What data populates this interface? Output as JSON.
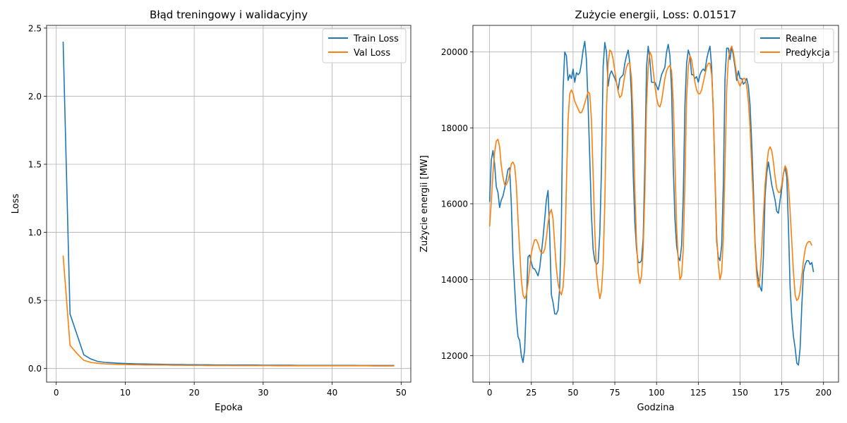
{
  "colors": {
    "series_1": "#1f77b4",
    "series_2": "#ff7f0e",
    "grid": "#b0b0b0"
  },
  "chart_data": [
    {
      "type": "line",
      "title": "Błąd treningowy i walidacyjny",
      "xlabel": "Epoka",
      "ylabel": "Loss",
      "xlim": [
        -1.4,
        51.4
      ],
      "ylim": [
        -0.1,
        2.52
      ],
      "xticks": [
        0,
        10,
        20,
        30,
        40,
        50
      ],
      "yticks": [
        0.0,
        0.5,
        1.0,
        1.5,
        2.0,
        2.5
      ],
      "ytick_labels": [
        "0.0",
        "0.5",
        "1.0",
        "1.5",
        "2.0",
        "2.5"
      ],
      "grid": true,
      "legend_position": "top-right",
      "x": [
        1,
        2,
        3,
        4,
        5,
        6,
        7,
        8,
        9,
        10,
        11,
        12,
        13,
        14,
        15,
        16,
        17,
        18,
        19,
        20,
        21,
        22,
        23,
        24,
        25,
        26,
        27,
        28,
        29,
        30,
        31,
        32,
        33,
        34,
        35,
        36,
        37,
        38,
        39,
        40,
        41,
        42,
        43,
        44,
        45,
        46,
        47,
        48,
        49
      ],
      "series": [
        {
          "name": "Train Loss",
          "color": "#1f77b4",
          "values": [
            2.4,
            0.4,
            0.25,
            0.1,
            0.07,
            0.052,
            0.045,
            0.042,
            0.039,
            0.037,
            0.035,
            0.034,
            0.033,
            0.032,
            0.031,
            0.03,
            0.029,
            0.029,
            0.028,
            0.028,
            0.027,
            0.027,
            0.026,
            0.026,
            0.026,
            0.025,
            0.025,
            0.025,
            0.025,
            0.024,
            0.024,
            0.024,
            0.024,
            0.024,
            0.023,
            0.023,
            0.023,
            0.023,
            0.023,
            0.023,
            0.023,
            0.023,
            0.023,
            0.022,
            0.022,
            0.022,
            0.022,
            0.022,
            0.022
          ]
        },
        {
          "name": "Val Loss",
          "color": "#ff7f0e",
          "values": [
            0.83,
            0.17,
            0.11,
            0.06,
            0.045,
            0.038,
            0.034,
            0.032,
            0.03,
            0.029,
            0.028,
            0.027,
            0.026,
            0.026,
            0.025,
            0.025,
            0.024,
            0.024,
            0.023,
            0.023,
            0.023,
            0.022,
            0.022,
            0.022,
            0.022,
            0.021,
            0.021,
            0.021,
            0.021,
            0.021,
            0.021,
            0.02,
            0.02,
            0.02,
            0.02,
            0.02,
            0.02,
            0.02,
            0.02,
            0.02,
            0.02,
            0.02,
            0.02,
            0.02,
            0.02,
            0.019,
            0.019,
            0.019,
            0.019
          ]
        }
      ]
    },
    {
      "type": "line",
      "title": "Zużycie energii, Loss: 0.01517",
      "xlabel": "Godzina",
      "ylabel": "Zużycie energii [MW]",
      "xlim": [
        -10,
        209
      ],
      "ylim": [
        11300,
        20700
      ],
      "xticks": [
        0,
        25,
        50,
        75,
        100,
        125,
        150,
        175,
        200
      ],
      "yticks": [
        12000,
        14000,
        16000,
        18000,
        20000
      ],
      "ytick_labels": [
        "12000",
        "14000",
        "16000",
        "18000",
        "20000"
      ],
      "grid": true,
      "legend_position": "top-right",
      "x_start": 0,
      "x_step": 1,
      "series": [
        {
          "name": "Realne",
          "color": "#1f77b4",
          "values": [
            16050,
            17150,
            17400,
            17050,
            16450,
            16300,
            15900,
            16100,
            16200,
            16400,
            16650,
            16900,
            16950,
            16000,
            14600,
            13800,
            13000,
            12500,
            12400,
            12000,
            11820,
            12150,
            13400,
            14600,
            14650,
            14450,
            14300,
            14280,
            14200,
            14100,
            14300,
            14700,
            15100,
            15600,
            16100,
            16350,
            15200,
            13600,
            13400,
            13100,
            13090,
            13200,
            13800,
            15500,
            19000,
            20000,
            19900,
            19250,
            19400,
            19300,
            19550,
            19200,
            19450,
            19400,
            19450,
            19700,
            20050,
            20280,
            19800,
            18600,
            17200,
            15700,
            14800,
            14500,
            14400,
            14450,
            15200,
            16900,
            19600,
            20250,
            20000,
            19100,
            19400,
            19500,
            19400,
            19300,
            19200,
            19000,
            19300,
            19350,
            19400,
            19700,
            19900,
            20050,
            19700,
            18800,
            16800,
            15500,
            14800,
            14450,
            14450,
            14500,
            15100,
            17100,
            19600,
            20150,
            19800,
            19200,
            19200,
            19200,
            19100,
            19000,
            19200,
            19400,
            19500,
            19600,
            20000,
            20200,
            19900,
            19000,
            17000,
            15600,
            14900,
            14600,
            14500,
            14900,
            16200,
            18600,
            19700,
            20050,
            19900,
            19400,
            19400,
            19300,
            19350,
            19200,
            19400,
            19500,
            19550,
            19500,
            19800,
            20000,
            20150,
            19600,
            18400,
            16700,
            15000,
            14600,
            14500,
            14900,
            16500,
            19300,
            20100,
            20100,
            19800,
            20150,
            19900,
            19600,
            19250,
            19500,
            19300,
            19300,
            19150,
            19200,
            19300,
            19100,
            18600,
            17600,
            16400,
            15000,
            14300,
            14000,
            13800,
            13700,
            14600,
            16200,
            16800,
            17100,
            16800,
            16500,
            16300,
            16100,
            15800,
            15750,
            16100,
            16400,
            16800,
            16950,
            16700,
            15400,
            13800,
            13000,
            12500,
            12200,
            11800,
            11750,
            12200,
            13300,
            14200,
            14400,
            14500,
            14500,
            14400,
            14450,
            14200
          ]
        },
        {
          "name": "Predykcja",
          "color": "#ff7f0e",
          "values": [
            15400,
            16050,
            16800,
            17350,
            17650,
            17700,
            17500,
            17000,
            16700,
            16500,
            16500,
            16600,
            16800,
            17050,
            17100,
            17000,
            16500,
            15600,
            14800,
            14000,
            13600,
            13500,
            13600,
            13900,
            14300,
            14700,
            14900,
            15050,
            15050,
            14950,
            14800,
            14700,
            14700,
            14800,
            15100,
            15500,
            15750,
            15850,
            15600,
            14900,
            14300,
            13900,
            13700,
            13600,
            13800,
            14500,
            16500,
            18200,
            18900,
            19000,
            18900,
            18700,
            18600,
            18500,
            18400,
            18400,
            18500,
            18650,
            18800,
            18950,
            18900,
            18200,
            16800,
            15300,
            14200,
            13800,
            13500,
            13700,
            14400,
            16000,
            18500,
            19700,
            20050,
            20000,
            19800,
            19500,
            19200,
            18950,
            18800,
            18850,
            19100,
            19400,
            19600,
            19700,
            19700,
            19300,
            18200,
            16400,
            15000,
            14200,
            13900,
            14100,
            14800,
            16300,
            18600,
            19600,
            20000,
            19900,
            19500,
            19100,
            18800,
            18600,
            18550,
            18700,
            19000,
            19300,
            19500,
            19600,
            19650,
            19500,
            18700,
            17100,
            15400,
            14500,
            14000,
            14100,
            14800,
            16600,
            18800,
            19600,
            19900,
            19800,
            19500,
            19200,
            19000,
            18900,
            18900,
            19000,
            19200,
            19400,
            19600,
            19700,
            19700,
            19400,
            18500,
            16800,
            15200,
            14400,
            14000,
            14200,
            15100,
            17000,
            19000,
            19800,
            20050,
            20150,
            20000,
            19700,
            19400,
            19200,
            19100,
            19200,
            19300,
            19300,
            19100,
            18700,
            18000,
            17000,
            16000,
            14900,
            14100,
            13800,
            14100,
            14800,
            15700,
            16500,
            17000,
            17400,
            17500,
            17400,
            17100,
            16700,
            16400,
            16300,
            16300,
            16500,
            16800,
            17000,
            16900,
            16500,
            15800,
            15000,
            14200,
            13600,
            13450,
            13500,
            13700,
            14100,
            14500,
            14800,
            14950,
            15000,
            15000,
            14900
          ]
        }
      ]
    }
  ]
}
